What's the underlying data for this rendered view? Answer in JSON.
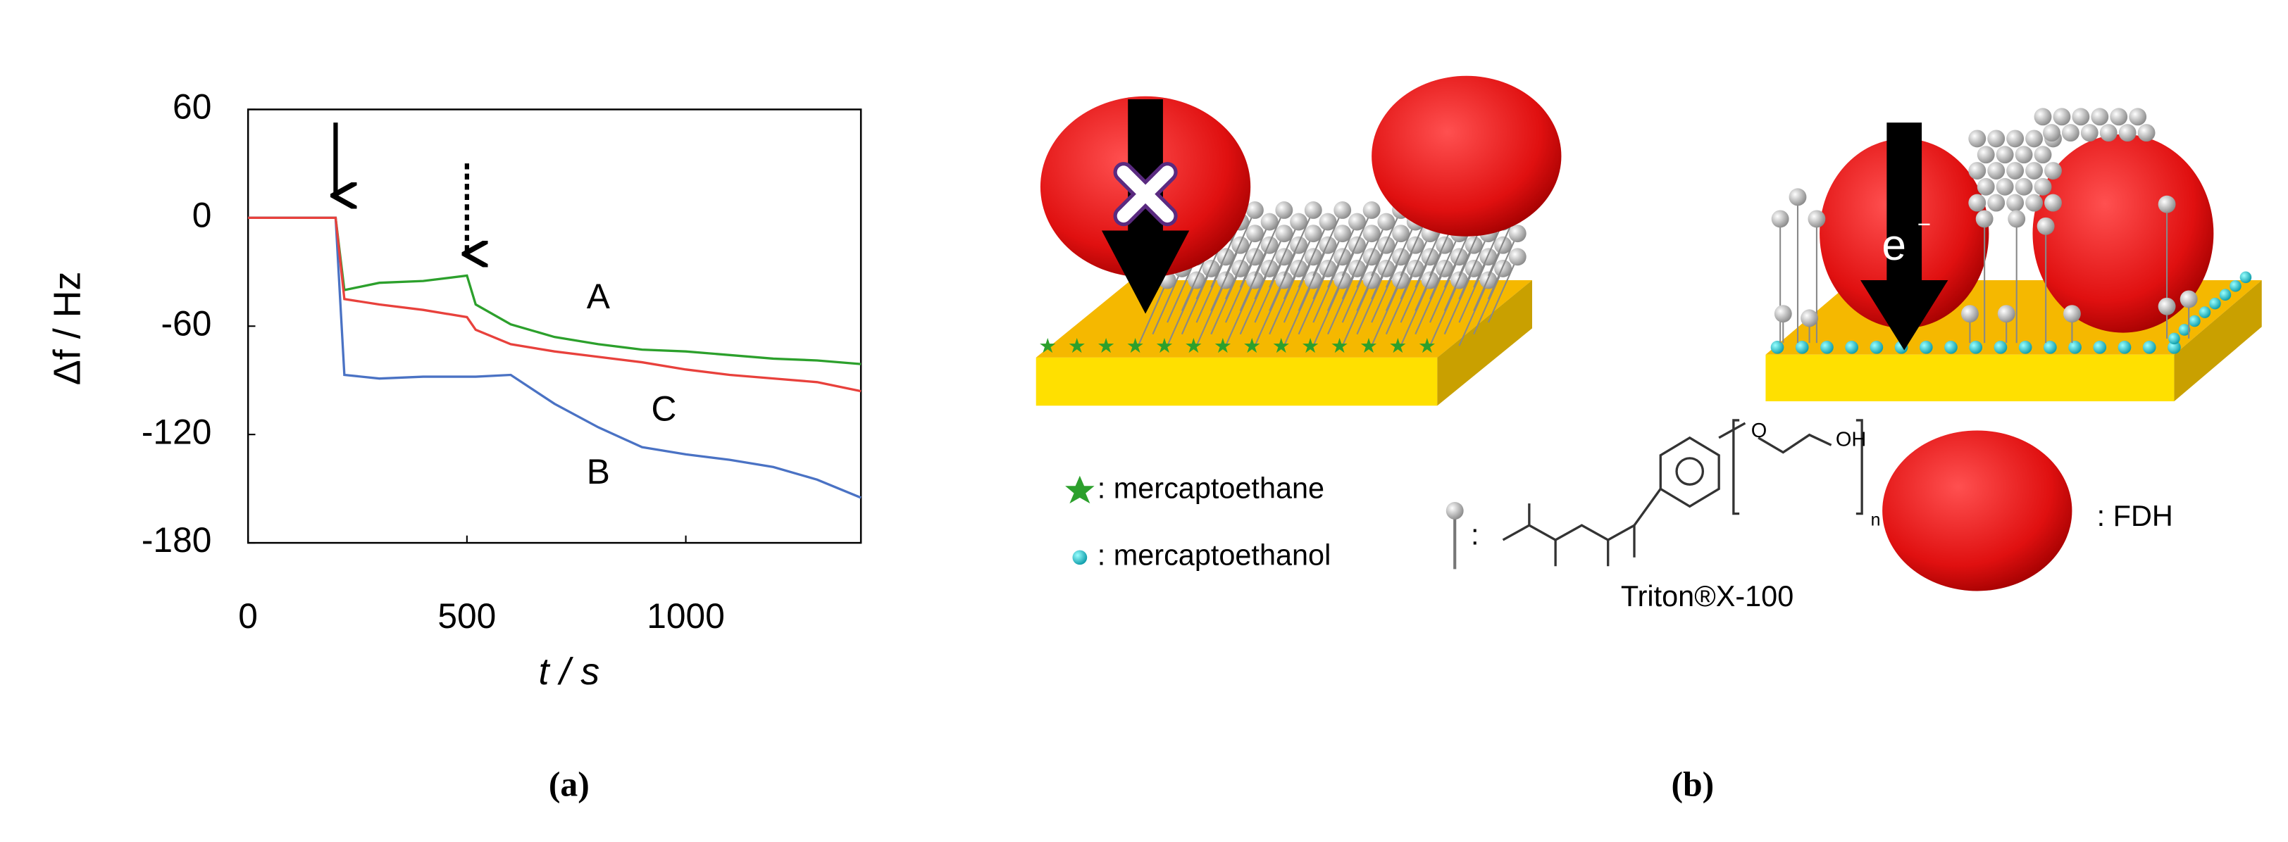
{
  "chart_data": {
    "type": "line",
    "x_label": "t / s",
    "y_label": "Δf / Hz",
    "x": [
      0,
      100,
      200,
      220,
      300,
      400,
      500,
      520,
      600,
      700,
      800,
      900,
      1000,
      1100,
      1200,
      1300,
      1400
    ],
    "series": [
      {
        "name": "A",
        "color": "#2ca02c",
        "values": [
          0,
          0,
          0,
          -40,
          -36,
          -35,
          -32,
          -48,
          -59,
          -66,
          -70,
          -73,
          -74,
          -76,
          -78,
          -79,
          -81
        ]
      },
      {
        "name": "B",
        "color": "#4a72c4",
        "values": [
          0,
          0,
          0,
          -87,
          -89,
          -88,
          -88,
          -88,
          -87,
          -103,
          -116,
          -127,
          -131,
          -134,
          -138,
          -145,
          -155
        ]
      },
      {
        "name": "C",
        "color": "#e8413c",
        "values": [
          0,
          0,
          0,
          -45,
          -48,
          -51,
          -55,
          -62,
          -70,
          -74,
          -77,
          -80,
          -84,
          -87,
          -89,
          -91,
          -96
        ]
      }
    ],
    "xlim": [
      0,
      1400
    ],
    "ylim": [
      -180,
      60
    ],
    "xticks": [
      0,
      500,
      1000
    ],
    "yticks": [
      -180,
      -120,
      -60,
      0,
      60
    ]
  },
  "panel_labels": [
    "(a)",
    "(b)"
  ],
  "diagram": {
    "electron": "e",
    "electron_charge": "−",
    "legend": [
      ": mercaptoethane",
      ": mercaptoethanol",
      ": FDH"
    ],
    "triton": {
      "colon": ":",
      "name": "Triton®X-100",
      "atoms": [
        "O",
        "OH",
        "n"
      ]
    }
  }
}
